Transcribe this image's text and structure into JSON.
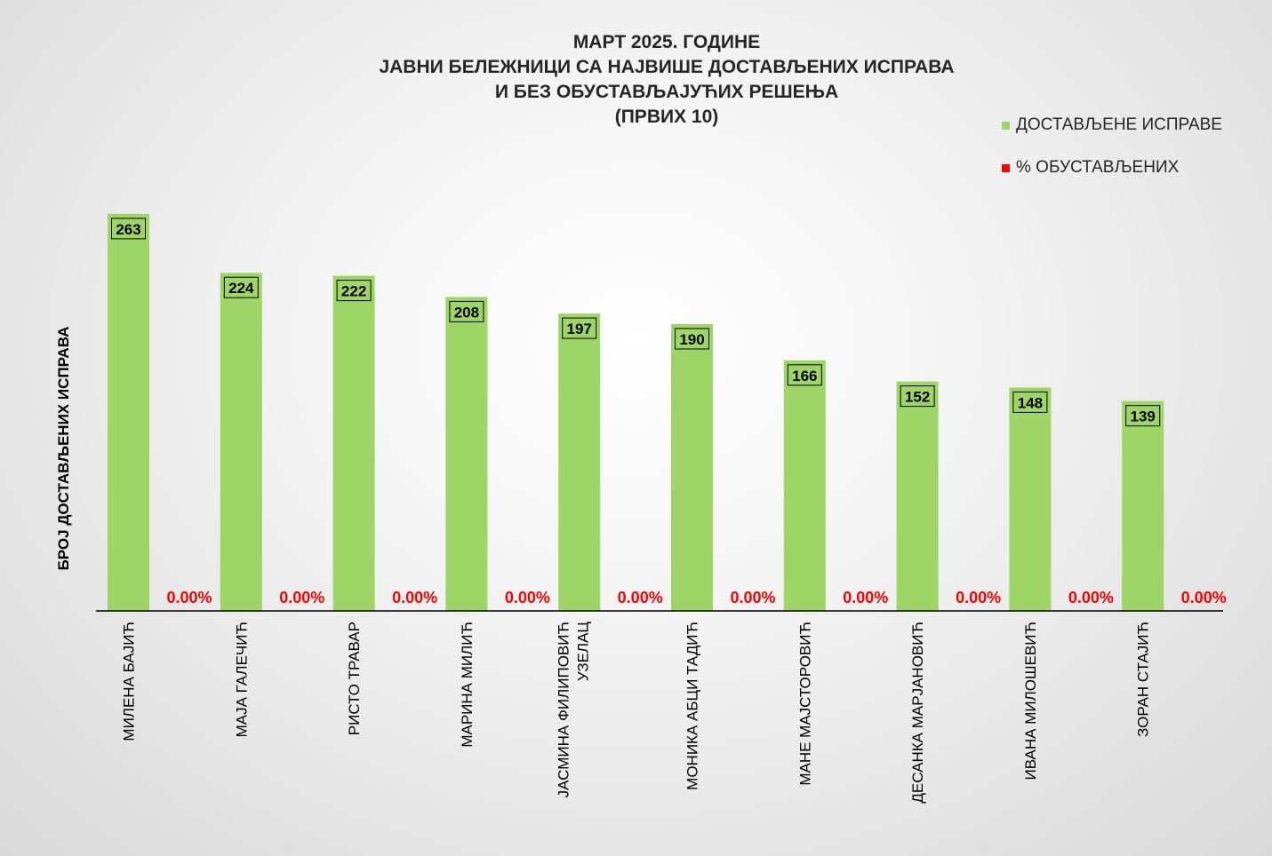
{
  "chart_data": {
    "type": "bar",
    "title": [
      "МАРТ 2025. ГОДИНЕ",
      "ЈАВНИ БЕЛЕЖНИЦИ СА НАЈВИШЕ ДОСТАВЉЕНИХ ИСПРАВА",
      "И БЕЗ ОБУСТАВЉАЈУЋИХ РЕШЕЊА",
      "(ПРВИХ 10)"
    ],
    "ylabel": "БРОЈ ДОСТАВЉЕНИХ ИСПРАВА",
    "ylim": [
      0,
      280
    ],
    "categories": [
      [
        "МИЛЕНА БАЈИЋ"
      ],
      [
        "МАЈА ГАЛЕЧИЋ"
      ],
      [
        "РИСТО ТРАВАР"
      ],
      [
        "МАРИНА МИЛИЋ"
      ],
      [
        "ЈАСМИНА ФИЛИПОВИЋ",
        "УЗЕЛАЦ"
      ],
      [
        "МОНИКА АБЦИ ТАДИЋ"
      ],
      [
        "МАНЕ МАЈСТОРОВИЋ"
      ],
      [
        "ДЕСАНКА МАРЈАНОВИЋ"
      ],
      [
        "ИВАНА МИЛОШЕВИЋ"
      ],
      [
        "ЗОРАН СТАЈИЋ"
      ]
    ],
    "series": [
      {
        "name": "ДОСТАВЉЕНЕ  ИСПРАВЕ",
        "color": "#9fd566",
        "values": [
          263,
          224,
          222,
          208,
          197,
          190,
          166,
          152,
          148,
          139
        ],
        "labels": [
          "263",
          "224",
          "222",
          "208",
          "197",
          "190",
          "166",
          "152",
          "148",
          "139"
        ]
      },
      {
        "name": "% ОБУСТАВЉЕНИХ",
        "color": "#ff0000",
        "values": [
          0,
          0,
          0,
          0,
          0,
          0,
          0,
          0,
          0,
          0
        ],
        "labels": [
          "0.00%",
          "0.00%",
          "0.00%",
          "0.00%",
          "0.00%",
          "0.00%",
          "0.00%",
          "0.00%",
          "0.00%",
          "0.00%"
        ]
      }
    ],
    "grid": false,
    "legend_position": "top-right"
  }
}
